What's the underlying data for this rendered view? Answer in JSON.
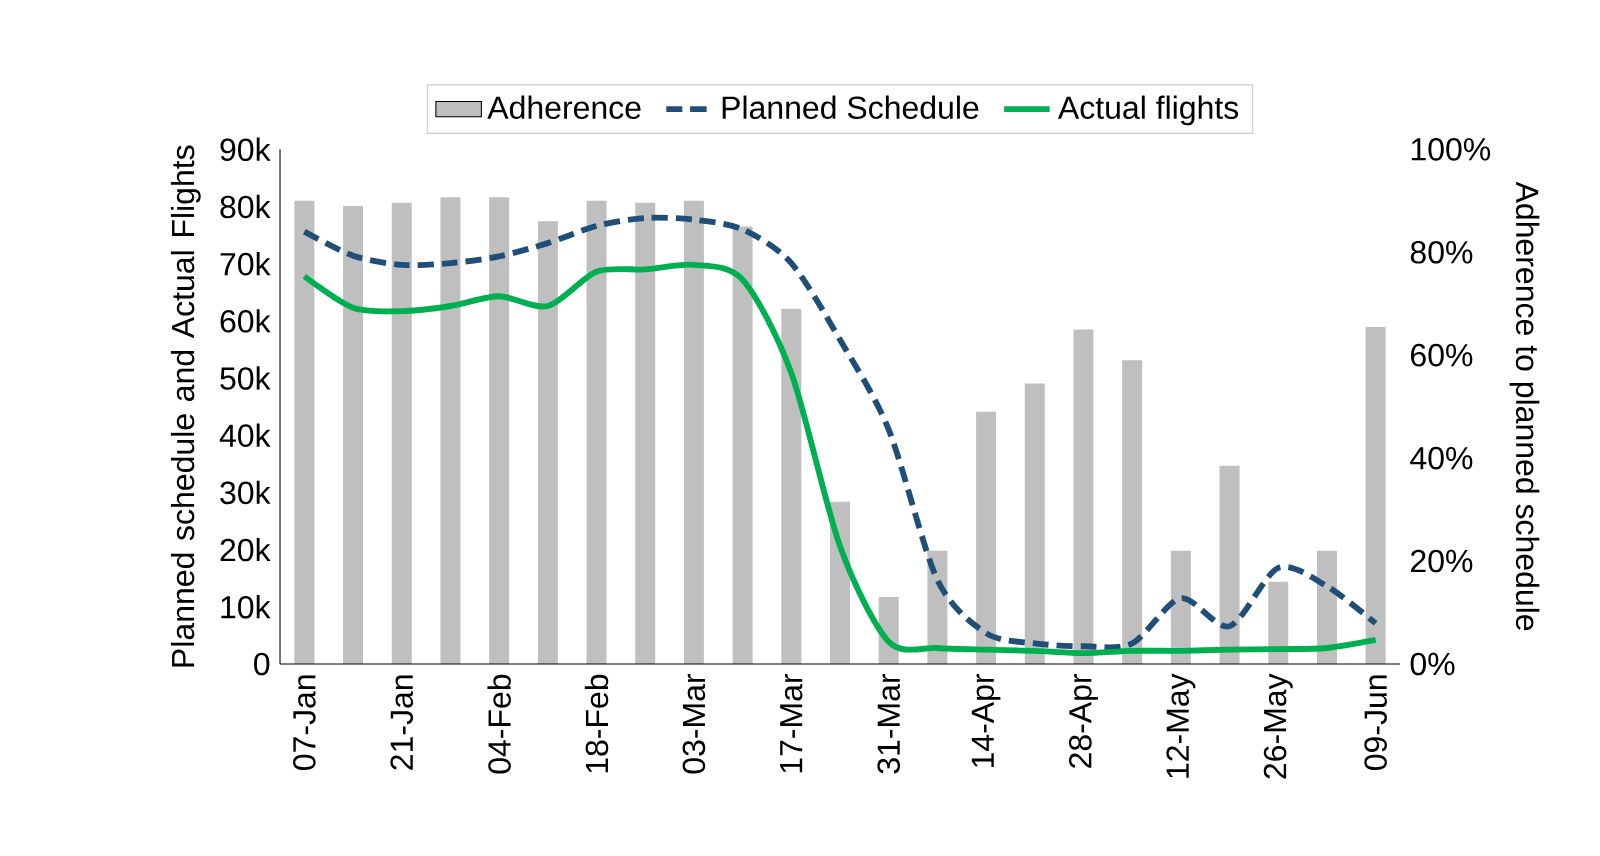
{
  "chart_data": {
    "type": "line",
    "categories": [
      "07-Jan",
      null,
      "21-Jan",
      null,
      "04-Feb",
      null,
      "18-Feb",
      null,
      "03-Mar",
      null,
      "17-Mar",
      null,
      "31-Mar",
      null,
      "14-Apr",
      null,
      "28-Apr",
      null,
      "12-May",
      null,
      "26-May",
      null,
      "09-Jun"
    ],
    "series": [
      {
        "name": "Adherence",
        "type": "bar",
        "axis": "y2",
        "color": "#bfbfbf",
        "values": [
          90,
          89,
          89.6,
          90.7,
          90.7,
          86,
          90,
          89.6,
          90,
          85,
          69,
          31.5,
          13,
          22,
          49,
          54.5,
          65,
          59,
          22,
          38.5,
          16,
          22,
          65.5
        ]
      },
      {
        "name": "Planned Schedule",
        "line_style": "dashed",
        "color": "#1f4e79",
        "values": [
          75600,
          71400,
          69800,
          70100,
          71300,
          73600,
          76600,
          78000,
          77700,
          76000,
          70100,
          56700,
          41000,
          14700,
          5400,
          3600,
          3100,
          3600,
          11500,
          6600,
          16800,
          13600,
          7100
        ]
      },
      {
        "name": "Actual flights",
        "line_style": "solid",
        "color": "#00b050",
        "values": [
          67800,
          62300,
          61700,
          62600,
          64300,
          62600,
          68600,
          69000,
          69800,
          67200,
          50900,
          20600,
          3900,
          2800,
          2500,
          2300,
          1900,
          2300,
          2300,
          2500,
          2600,
          2800,
          4200
        ]
      }
    ],
    "ylabel": "Planned schedule and Actual Flights",
    "y2label": "Adherence to planned schedule",
    "ylim": [
      0,
      90000
    ],
    "yticks": [
      0,
      {
        "value": 10000,
        "label": "10k"
      },
      {
        "value": 20000,
        "label": "20k"
      },
      {
        "value": 30000,
        "label": "30k"
      },
      {
        "value": 40000,
        "label": "40k"
      },
      {
        "value": 50000,
        "label": "50k"
      },
      {
        "value": 60000,
        "label": "60k"
      },
      {
        "value": 70000,
        "label": "70k"
      },
      {
        "value": 80000,
        "label": "80k"
      },
      {
        "value": 90000,
        "label": "90k"
      }
    ],
    "y2lim": [
      0,
      100
    ],
    "y2ticks": [
      {
        "value": 0,
        "label": "0%"
      },
      {
        "value": 20,
        "label": "20%"
      },
      {
        "value": 40,
        "label": "40%"
      },
      {
        "value": 60,
        "label": "60%"
      },
      {
        "value": 80,
        "label": "80%"
      },
      {
        "value": 100,
        "label": "100%"
      }
    ],
    "legend": "top",
    "marker": "none",
    "grid": false
  }
}
